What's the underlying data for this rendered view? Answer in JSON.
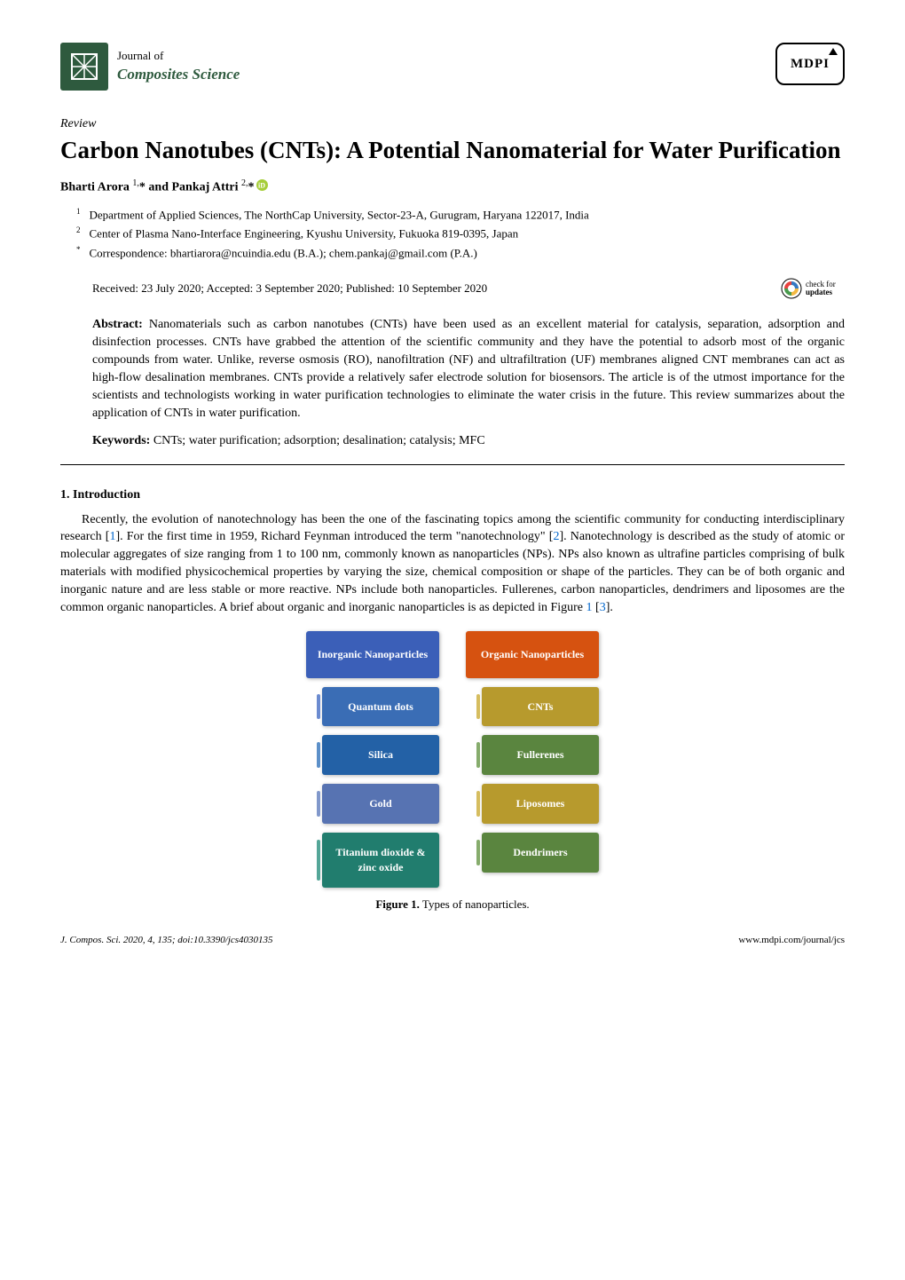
{
  "journal": {
    "line1": "Journal of",
    "line2": "Composites Science",
    "publisher": "MDPI"
  },
  "article": {
    "type": "Review",
    "title": "Carbon Nanotubes (CNTs): A Potential Nanomaterial for Water Purification"
  },
  "authors": {
    "list": "Bharti Arora ",
    "sup1": "1,",
    "star1": "*",
    "and": " and Pankaj Attri ",
    "sup2": "2,",
    "star2": "*"
  },
  "affiliations": {
    "a1_sup": "1",
    "a1": "Department of Applied Sciences, The NorthCap University, Sector-23-A, Gurugram, Haryana 122017, India",
    "a2_sup": "2",
    "a2": "Center of Plasma Nano-Interface Engineering, Kyushu University, Fukuoka 819-0395, Japan",
    "corr_sup": "*",
    "corr": "Correspondence: bhartiarora@ncuindia.edu (B.A.); chem.pankaj@gmail.com (P.A.)"
  },
  "dates": "Received: 23 July 2020; Accepted: 3 September 2020; Published: 10 September 2020",
  "check_updates": {
    "line1": "check for",
    "line2": "updates"
  },
  "abstract": {
    "label": "Abstract:",
    "text": " Nanomaterials such as carbon nanotubes (CNTs) have been used as an excellent material for catalysis, separation, adsorption and disinfection processes. CNTs have grabbed the attention of the scientific community and they have the potential to adsorb most of the organic compounds from water. Unlike, reverse osmosis (RO), nanofiltration (NF) and ultrafiltration (UF) membranes aligned CNT membranes can act as high-flow desalination membranes. CNTs provide a relatively safer electrode solution for biosensors. The article is of the utmost importance for the scientists and technologists working in water purification technologies to eliminate the water crisis in the future. This review summarizes about the application of CNTs in water purification."
  },
  "keywords": {
    "label": "Keywords:",
    "text": " CNTs; water purification; adsorption; desalination; catalysis; MFC"
  },
  "section1": {
    "heading": "1. Introduction",
    "para1_a": "Recently, the evolution of nanotechnology has been the one of the fascinating topics among the scientific community for conducting interdisciplinary research [",
    "ref1": "1",
    "para1_b": "]. For the first time in 1959, Richard Feynman introduced the term \"nanotechnology\" [",
    "ref2": "2",
    "para1_c": "]. Nanotechnology is described as the study of atomic or molecular aggregates of size ranging from 1 to 100 nm, commonly known as nanoparticles (NPs). NPs also known as ultrafine particles comprising of bulk materials with modified physicochemical properties by varying the size, chemical composition or shape of the particles. They can be of both organic and inorganic nature and are less stable or more reactive. NPs include both nanoparticles. Fullerenes, carbon nanoparticles, dendrimers and liposomes are the common organic nanoparticles. A brief about organic and inorganic nanoparticles is as depicted in Figure ",
    "figref": "1",
    "para1_d": " [",
    "ref3": "3",
    "para1_e": "]."
  },
  "figure1": {
    "left": {
      "head": "Inorganic Nanoparticles",
      "head_color": "#3b5fb8",
      "items": [
        {
          "label": "Quantum dots",
          "bg": "#3a6db5",
          "bar": "#6b8bd0"
        },
        {
          "label": "Silica",
          "bg": "#2361a6",
          "bar": "#5c90c9"
        },
        {
          "label": "Gold",
          "bg": "#5773b2",
          "bar": "#8198cb"
        },
        {
          "label": "Titanium dioxide & zinc oxide",
          "bg": "#217d6e",
          "bar": "#54a698"
        }
      ]
    },
    "right": {
      "head": "Organic Nanoparticles",
      "head_color": "#d65210",
      "items": [
        {
          "label": "CNTs",
          "bg": "#b79a2d",
          "bar": "#d6bd5f"
        },
        {
          "label": "Fullerenes",
          "bg": "#5a853f",
          "bar": "#86ac6c"
        },
        {
          "label": "Liposomes",
          "bg": "#b79a2d",
          "bar": "#d6bd5f"
        },
        {
          "label": "Dendrimers",
          "bg": "#5a853f",
          "bar": "#86ac6c"
        }
      ]
    },
    "caption_label": "Figure 1.",
    "caption_text": " Types of nanoparticles."
  },
  "footer": {
    "left": "J. Compos. Sci. 2020, 4, 135; doi:10.3390/jcs4030135",
    "right": "www.mdpi.com/journal/jcs"
  },
  "colors": {
    "brand_green": "#2e5a3e",
    "link_blue": "#0066cc",
    "orcid_green": "#a6ce39"
  }
}
